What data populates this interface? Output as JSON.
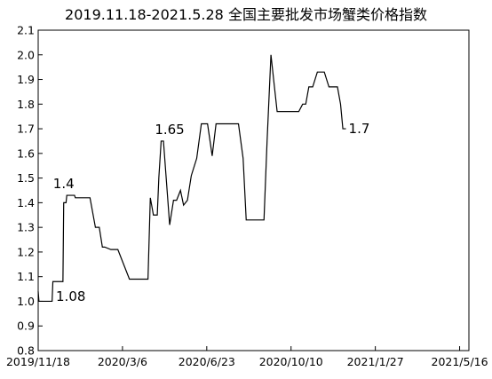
{
  "chart_data": {
    "type": "line",
    "title": "2019.11.18-2021.5.28 全国主要批发市场蟹类价格指数",
    "xlabel": "",
    "ylabel": "",
    "x_start": "2019-11-18",
    "x_end": "2021-05-28",
    "x_tick_labels": [
      {
        "date": "2019-11-18",
        "label": "2019/11/18"
      },
      {
        "date": "2020-03-06",
        "label": "2020/3/6"
      },
      {
        "date": "2020-06-23",
        "label": "2020/6/23"
      },
      {
        "date": "2020-10-10",
        "label": "2020/10/10"
      },
      {
        "date": "2021-01-27",
        "label": "2021/1/27"
      },
      {
        "date": "2021-05-16",
        "label": "2021/5/16"
      }
    ],
    "ylim": [
      0.8,
      2.1
    ],
    "y_ticks": [
      "0.8",
      "0.9",
      "1.0",
      "1.1",
      "1.2",
      "1.3",
      "1.4",
      "1.5",
      "1.6",
      "1.7",
      "1.8",
      "1.9",
      "2.0",
      "2.1"
    ],
    "grid": false,
    "legend": "none",
    "line_color": "#000000",
    "series": [
      {
        "points": [
          [
            "2019-11-18",
            1.04
          ],
          [
            "2019-11-19",
            1.0
          ],
          [
            "2019-12-06",
            1.0
          ],
          [
            "2019-12-07",
            1.08
          ],
          [
            "2019-12-20",
            1.08
          ],
          [
            "2019-12-21",
            1.4
          ],
          [
            "2019-12-24",
            1.4
          ],
          [
            "2019-12-25",
            1.43
          ],
          [
            "2020-01-04",
            1.43
          ],
          [
            "2020-01-05",
            1.42
          ],
          [
            "2020-01-24",
            1.42
          ],
          [
            "2020-01-31",
            1.3
          ],
          [
            "2020-02-05",
            1.3
          ],
          [
            "2020-02-09",
            1.22
          ],
          [
            "2020-02-12",
            1.22
          ],
          [
            "2020-02-20",
            1.21
          ],
          [
            "2020-02-22",
            1.21
          ],
          [
            "2020-02-29",
            1.21
          ],
          [
            "2020-03-15",
            1.09
          ],
          [
            "2020-04-01",
            1.09
          ],
          [
            "2020-04-08",
            1.09
          ],
          [
            "2020-04-11",
            1.42
          ],
          [
            "2020-04-15",
            1.35
          ],
          [
            "2020-04-20",
            1.35
          ],
          [
            "2020-04-22",
            1.5
          ],
          [
            "2020-04-25",
            1.65
          ],
          [
            "2020-04-28",
            1.65
          ],
          [
            "2020-05-06",
            1.31
          ],
          [
            "2020-05-11",
            1.41
          ],
          [
            "2020-05-15",
            1.41
          ],
          [
            "2020-05-20",
            1.45
          ],
          [
            "2020-05-24",
            1.39
          ],
          [
            "2020-05-29",
            1.41
          ],
          [
            "2020-06-03",
            1.51
          ],
          [
            "2020-06-10",
            1.58
          ],
          [
            "2020-06-16",
            1.72
          ],
          [
            "2020-06-24",
            1.72
          ],
          [
            "2020-06-30",
            1.59
          ],
          [
            "2020-07-05",
            1.72
          ],
          [
            "2020-08-03",
            1.72
          ],
          [
            "2020-08-09",
            1.58
          ],
          [
            "2020-08-13",
            1.33
          ],
          [
            "2020-08-30",
            1.33
          ],
          [
            "2020-09-05",
            1.33
          ],
          [
            "2020-09-09",
            1.65
          ],
          [
            "2020-09-14",
            2.0
          ],
          [
            "2020-09-22",
            1.77
          ],
          [
            "2020-10-20",
            1.77
          ],
          [
            "2020-10-25",
            1.8
          ],
          [
            "2020-10-29",
            1.8
          ],
          [
            "2020-11-02",
            1.87
          ],
          [
            "2020-11-07",
            1.87
          ],
          [
            "2020-11-13",
            1.93
          ],
          [
            "2020-11-22",
            1.93
          ],
          [
            "2020-11-28",
            1.87
          ],
          [
            "2020-12-09",
            1.87
          ],
          [
            "2020-12-13",
            1.8
          ],
          [
            "2020-12-16",
            1.7
          ],
          [
            "2020-12-20",
            1.7
          ]
        ]
      }
    ],
    "annotations": [
      {
        "text": "1.4",
        "x": "2019-12-21",
        "y": 1.43,
        "anchor": "above"
      },
      {
        "text": "1.08",
        "x": "2019-12-21",
        "y": 1.08,
        "anchor": "below"
      },
      {
        "text": "1.65",
        "x": "2020-05-06",
        "y": 1.65,
        "anchor": "above"
      },
      {
        "text": "1.7",
        "x": "2020-12-20",
        "y": 1.7,
        "anchor": "right"
      }
    ]
  }
}
